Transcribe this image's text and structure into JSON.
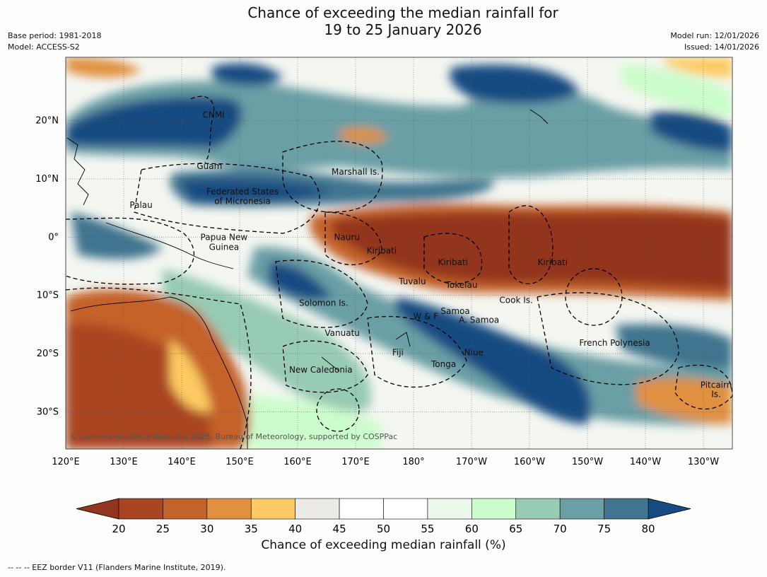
{
  "title_line1": "Chance of exceeding the median rainfall for",
  "title_line2": "19 to 25 January 2026",
  "base_period": "Base period: 1981-2018",
  "model": "Model: ACCESS-S2",
  "model_run": "Model run: 12/01/2026",
  "issued": "Issued: 14/01/2026",
  "copyright": "© Commonwealth of Australia 2026, Bureau of Meteorology, supported by COSPPac",
  "footnote": "--  --  -- EEZ border V11 (Flanders Marine Institute, 2019).",
  "lat_ticks": [
    "20°N",
    "10°N",
    "0°",
    "10°S",
    "20°S",
    "30°S"
  ],
  "lon_ticks": [
    "120°E",
    "130°E",
    "140°E",
    "150°E",
    "160°E",
    "170°E",
    "180°",
    "170°W",
    "160°W",
    "150°W",
    "140°W",
    "130°W"
  ],
  "regions": [
    {
      "name": "CNMI",
      "lon": 145.5,
      "lat": 21
    },
    {
      "name": "Guam",
      "lon": 144.8,
      "lat": 12.2
    },
    {
      "name": "Marshall Is.",
      "lon": 170,
      "lat": 11.2
    },
    {
      "name": "Palau",
      "lon": 133,
      "lat": 5.5
    },
    {
      "name": "Federated States",
      "lon": 150.5,
      "lat": 7.8
    },
    {
      "name": "of Micronesia",
      "lon": 150.5,
      "lat": 6.2
    },
    {
      "name": "Nauru",
      "lon": 168.5,
      "lat": 0
    },
    {
      "name": "Papua New",
      "lon": 147.3,
      "lat": 0
    },
    {
      "name": "Guinea",
      "lon": 147.3,
      "lat": -1.7
    },
    {
      "name": "Kiribati",
      "lon": 174.5,
      "lat": -2.3
    },
    {
      "name": "Kiribati",
      "lon": -173.2,
      "lat": -4.3
    },
    {
      "name": "Kiribati",
      "lon": -156,
      "lat": -4.3
    },
    {
      "name": "Tuvalu",
      "lon": 179.8,
      "lat": -7.6
    },
    {
      "name": "Tokelau",
      "lon": -171.7,
      "lat": -8.2
    },
    {
      "name": "Cook Is.",
      "lon": -162.3,
      "lat": -10.8
    },
    {
      "name": "Solomon Is.",
      "lon": 164.5,
      "lat": -11.3
    },
    {
      "name": "Samoa",
      "lon": -172.8,
      "lat": -12.7
    },
    {
      "name": "W & F",
      "lon": -177.9,
      "lat": -13.6
    },
    {
      "name": "A. Samoa",
      "lon": -168.7,
      "lat": -14.2
    },
    {
      "name": "Vanuatu",
      "lon": 167.7,
      "lat": -16.5
    },
    {
      "name": "French Polynesia",
      "lon": -145.3,
      "lat": -18.2
    },
    {
      "name": "Fiji",
      "lon": 177.3,
      "lat": -19.8
    },
    {
      "name": "Niue",
      "lon": -169.6,
      "lat": -19.8
    },
    {
      "name": "Tonga",
      "lon": -174.8,
      "lat": -21.8
    },
    {
      "name": "New Caledonia",
      "lon": 164,
      "lat": -22.8
    },
    {
      "name": "Pitcairn",
      "lon": -127.8,
      "lat": -25.4
    },
    {
      "name": "Is.",
      "lon": -127.8,
      "lat": -27
    }
  ],
  "colorbar": {
    "ticks": [
      "20",
      "25",
      "30",
      "35",
      "40",
      "45",
      "50",
      "55",
      "60",
      "65",
      "70",
      "75",
      "80"
    ],
    "under_color": "#93361f",
    "over_color": "#164c82",
    "colors": [
      "#aa4524",
      "#c4622c",
      "#e0903f",
      "#fdca62",
      "#eceae6",
      "#ffffff",
      "#ffffff",
      "#ebf7ea",
      "#ccfdcc",
      "#98cbb4",
      "#6a9fa6",
      "#41758f"
    ],
    "label": "Chance of exceeding median rainfall (%)"
  }
}
